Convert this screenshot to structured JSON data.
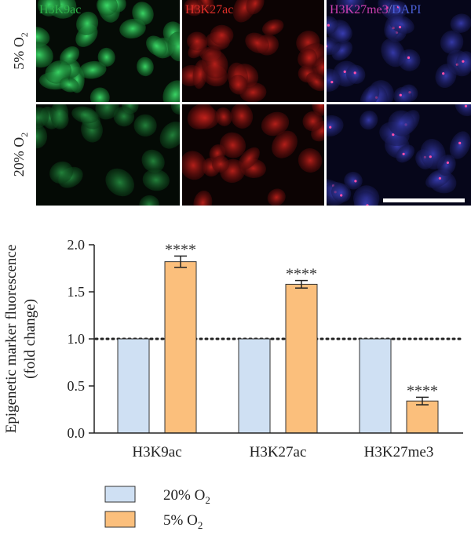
{
  "panels": {
    "rows": [
      {
        "label_main": "5% O",
        "label_sub": "2"
      },
      {
        "label_main": "20% O",
        "label_sub": "2"
      }
    ],
    "columns": [
      {
        "label": "H3K9ac",
        "color": "#2fb34a"
      },
      {
        "label": "H3K27ac",
        "color": "#e0302a"
      },
      {
        "label_a": "H3K27me3",
        "label_slash": "/",
        "label_b": "DAPI",
        "color_a": "#cc3fb0",
        "color_b": "#4a5fd6"
      }
    ]
  },
  "chart_data": {
    "type": "bar",
    "categories": [
      "H3K9ac",
      "H3K27ac",
      "H3K27me3"
    ],
    "series": [
      {
        "name_main": "20% O",
        "name_sub": "2",
        "color": "#cfe0f3",
        "values": [
          1.0,
          1.0,
          1.0
        ],
        "errors": [
          0,
          0,
          0
        ]
      },
      {
        "name_main": "5% O",
        "name_sub": "2",
        "color": "#fbbf7c",
        "values": [
          1.82,
          1.58,
          0.34
        ],
        "errors": [
          0.06,
          0.04,
          0.04
        ],
        "annotations": [
          "****",
          "****",
          "****"
        ]
      }
    ],
    "ylabel_line1": "Epigenetic marker fluorescence",
    "ylabel_line2": "(fold change)",
    "ylim": [
      0.0,
      2.0
    ],
    "yticks": [
      "0.0",
      "0.5",
      "1.0",
      "1.5",
      "2.0"
    ],
    "reference_line": 1.0,
    "legend_position": "bottom-left"
  }
}
